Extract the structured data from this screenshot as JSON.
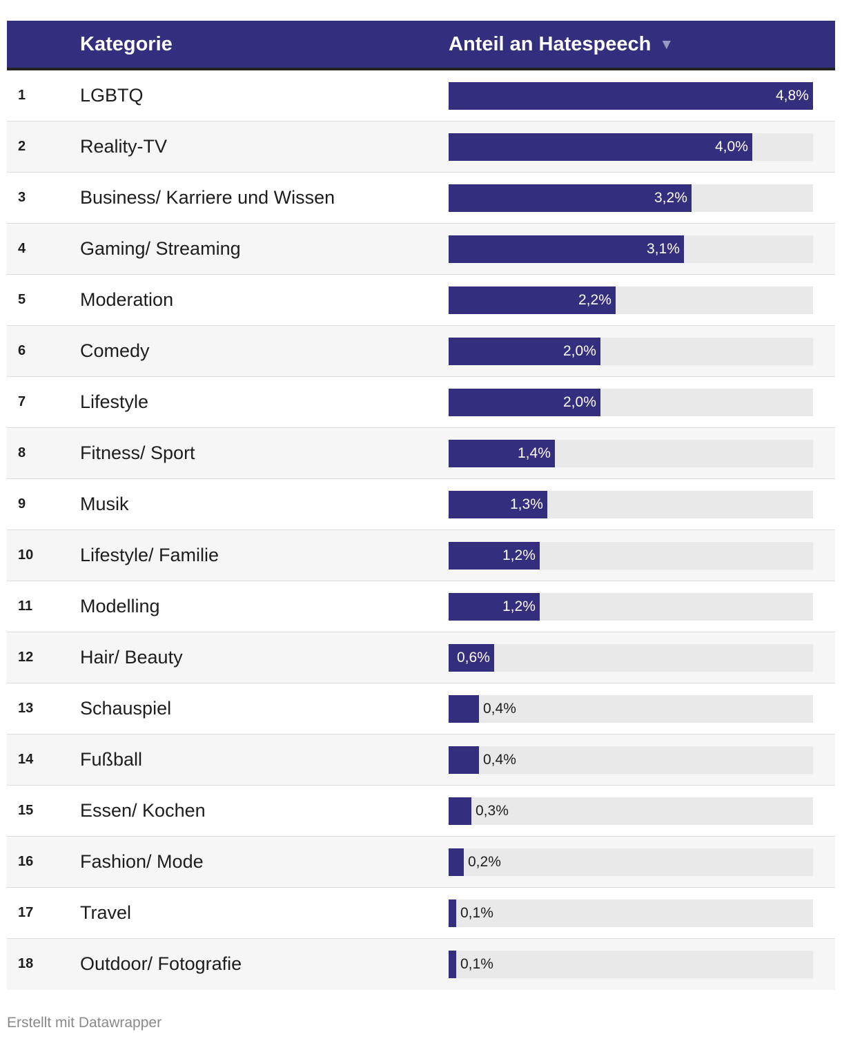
{
  "header": {
    "category_label": "Kategorie",
    "share_label": "Anteil an Hatespeech",
    "sort_icon": "▼"
  },
  "colors": {
    "bar": "#332e7d",
    "track": "#e9e9e9"
  },
  "chart_data": {
    "type": "table",
    "title": "",
    "columns": [
      "",
      "Kategorie",
      "Anteil an Hatespeech"
    ],
    "sort": {
      "column": "Anteil an Hatespeech",
      "direction": "descending"
    },
    "xlim": [
      0,
      4.8
    ],
    "unit": "%",
    "rows": [
      {
        "rank": "1",
        "category": "LGBTQ",
        "value": 4.8,
        "label": "4,8%"
      },
      {
        "rank": "2",
        "category": "Reality-TV",
        "value": 4.0,
        "label": "4,0%"
      },
      {
        "rank": "3",
        "category": "Business/ Karriere und Wissen",
        "value": 3.2,
        "label": "3,2%"
      },
      {
        "rank": "4",
        "category": "Gaming/ Streaming",
        "value": 3.1,
        "label": "3,1%"
      },
      {
        "rank": "5",
        "category": "Moderation",
        "value": 2.2,
        "label": "2,2%"
      },
      {
        "rank": "6",
        "category": "Comedy",
        "value": 2.0,
        "label": "2,0%"
      },
      {
        "rank": "7",
        "category": "Lifestyle",
        "value": 2.0,
        "label": "2,0%"
      },
      {
        "rank": "8",
        "category": "Fitness/ Sport",
        "value": 1.4,
        "label": "1,4%"
      },
      {
        "rank": "9",
        "category": "Musik",
        "value": 1.3,
        "label": "1,3%"
      },
      {
        "rank": "10",
        "category": "Lifestyle/ Familie",
        "value": 1.2,
        "label": "1,2%"
      },
      {
        "rank": "11",
        "category": "Modelling",
        "value": 1.2,
        "label": "1,2%"
      },
      {
        "rank": "12",
        "category": "Hair/ Beauty",
        "value": 0.6,
        "label": "0,6%"
      },
      {
        "rank": "13",
        "category": "Schauspiel",
        "value": 0.4,
        "label": "0,4%"
      },
      {
        "rank": "14",
        "category": "Fußball",
        "value": 0.4,
        "label": "0,4%"
      },
      {
        "rank": "15",
        "category": "Essen/ Kochen",
        "value": 0.3,
        "label": "0,3%"
      },
      {
        "rank": "16",
        "category": "Fashion/ Mode",
        "value": 0.2,
        "label": "0,2%"
      },
      {
        "rank": "17",
        "category": "Travel",
        "value": 0.1,
        "label": "0,1%"
      },
      {
        "rank": "18",
        "category": "Outdoor/ Fotografie",
        "value": 0.1,
        "label": "0,1%"
      }
    ]
  },
  "footer": {
    "credit": "Erstellt mit Datawrapper"
  }
}
